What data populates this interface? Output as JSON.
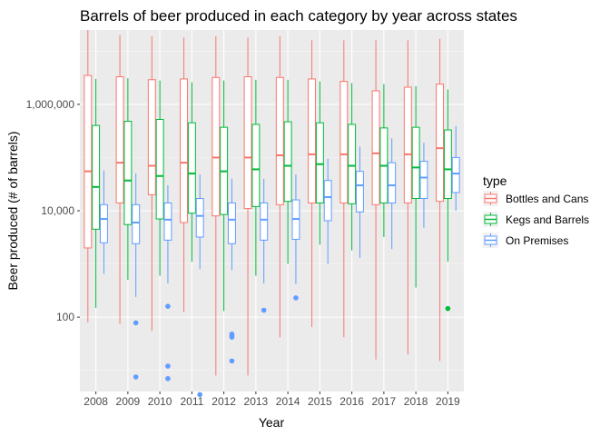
{
  "chart_data": {
    "type": "boxplot",
    "title": "Barrels of beer produced in each category by year across states",
    "xlabel": "Year",
    "ylabel": "Beer produced (# of barrels)",
    "y_scale": "log10",
    "ylim": [
      4,
      25000000
    ],
    "y_ticks": [
      {
        "value": 100,
        "label": "100"
      },
      {
        "value": 10000,
        "label": "10,000"
      },
      {
        "value": 1000000,
        "label": "1,000,000"
      }
    ],
    "legend": {
      "title": "type",
      "position": "right"
    },
    "categories": [
      "2008",
      "2009",
      "2010",
      "2011",
      "2012",
      "2013",
      "2014",
      "2015",
      "2016",
      "2017",
      "2018",
      "2019"
    ],
    "background": "#ebebeb",
    "grid": true,
    "series": [
      {
        "name": "Bottles and Cans",
        "color": "#f8766d",
        "boxes": [
          {
            "lower": 80,
            "q1": 2000,
            "median": 55000,
            "q3": 3500000,
            "upper": 25000000,
            "outliers": []
          },
          {
            "lower": 75,
            "q1": 14000,
            "median": 80000,
            "q3": 3300000,
            "upper": 20000000,
            "outliers": []
          },
          {
            "lower": 55,
            "q1": 20000,
            "median": 70000,
            "q3": 2900000,
            "upper": 19000000,
            "outliers": []
          },
          {
            "lower": 125,
            "q1": 6000,
            "median": 80000,
            "q3": 3000000,
            "upper": 18000000,
            "outliers": []
          },
          {
            "lower": 8,
            "q1": 8000,
            "median": 100000,
            "q3": 3200000,
            "upper": 19000000,
            "outliers": []
          },
          {
            "lower": 8,
            "q1": 11000,
            "median": 100000,
            "q3": 3300000,
            "upper": 18000000,
            "outliers": []
          },
          {
            "lower": 42,
            "q1": 13000,
            "median": 110000,
            "q3": 3200000,
            "upper": 19000000,
            "outliers": []
          },
          {
            "lower": 65,
            "q1": 14000,
            "median": 115000,
            "q3": 3000000,
            "upper": 16000000,
            "outliers": []
          },
          {
            "lower": 42,
            "q1": 14000,
            "median": 115000,
            "q3": 2700000,
            "upper": 16000000,
            "outliers": []
          },
          {
            "lower": 16,
            "q1": 13000,
            "median": 120000,
            "q3": 1800000,
            "upper": 16000000,
            "outliers": []
          },
          {
            "lower": 20,
            "q1": 14000,
            "median": 115000,
            "q3": 2100000,
            "upper": 16000000,
            "outliers": []
          },
          {
            "lower": 15,
            "q1": 15000,
            "median": 150000,
            "q3": 2400000,
            "upper": 17000000,
            "outliers": []
          }
        ]
      },
      {
        "name": "Kegs and Barrels",
        "color": "#00ba38",
        "boxes": [
          {
            "lower": 150,
            "q1": 4500,
            "median": 28000,
            "q3": 400000,
            "upper": 3000000,
            "outliers": []
          },
          {
            "lower": 500,
            "q1": 5500,
            "median": 37000,
            "q3": 480000,
            "upper": 3100000,
            "outliers": []
          },
          {
            "lower": 600,
            "q1": 7000,
            "median": 45000,
            "q3": 520000,
            "upper": 2800000,
            "outliers": []
          },
          {
            "lower": 1100,
            "q1": 9000,
            "median": 50000,
            "q3": 450000,
            "upper": 2600000,
            "outliers": []
          },
          {
            "lower": 130,
            "q1": 8500,
            "median": 55000,
            "q3": 370000,
            "upper": 2800000,
            "outliers": []
          },
          {
            "lower": 600,
            "q1": 12000,
            "median": 60000,
            "q3": 420000,
            "upper": 2900000,
            "outliers": []
          },
          {
            "lower": 1000,
            "q1": 15000,
            "median": 70000,
            "q3": 470000,
            "upper": 2900000,
            "outliers": []
          },
          {
            "lower": 2300,
            "q1": 14000,
            "median": 75000,
            "q3": 450000,
            "upper": 2700000,
            "outliers": []
          },
          {
            "lower": 1800,
            "q1": 13500,
            "median": 70000,
            "q3": 420000,
            "upper": 2500000,
            "outliers": []
          },
          {
            "lower": 3200,
            "q1": 14000,
            "median": 70000,
            "q3": 360000,
            "upper": 2400000,
            "outliers": []
          },
          {
            "lower": 360,
            "q1": 17000,
            "median": 65000,
            "q3": 370000,
            "upper": 2200000,
            "outliers": []
          },
          {
            "lower": 1100,
            "q1": 17000,
            "median": 60000,
            "q3": 330000,
            "upper": 1900000,
            "outliers": [
              145
            ]
          }
        ]
      },
      {
        "name": "On Premises",
        "color": "#619cff",
        "boxes": [
          {
            "lower": 650,
            "q1": 2500,
            "median": 7000,
            "q3": 13000,
            "upper": 57000,
            "outliers": []
          },
          {
            "lower": 240,
            "q1": 2400,
            "median": 6000,
            "q3": 13000,
            "upper": 50000,
            "outliers": [
              7.5,
              78
            ]
          },
          {
            "lower": 430,
            "q1": 2800,
            "median": 6800,
            "q3": 14000,
            "upper": 30000,
            "outliers": [
              7,
              12,
              160
            ]
          },
          {
            "lower": 800,
            "q1": 3200,
            "median": 8000,
            "q3": 17000,
            "upper": 48000,
            "outliers": [
              3.5
            ]
          },
          {
            "lower": 760,
            "q1": 2400,
            "median": 6800,
            "q3": 14000,
            "upper": 40000,
            "outliers": [
              15,
              42,
              45,
              48
            ]
          },
          {
            "lower": 430,
            "q1": 2800,
            "median": 6800,
            "q3": 14000,
            "upper": 40000,
            "outliers": [
              135
            ]
          },
          {
            "lower": 420,
            "q1": 2900,
            "median": 7000,
            "q3": 16000,
            "upper": 48000,
            "outliers": [
              230
            ]
          },
          {
            "lower": 1000,
            "q1": 6500,
            "median": 18000,
            "q3": 37000,
            "upper": 95000,
            "outliers": []
          },
          {
            "lower": 1300,
            "q1": 9500,
            "median": 30000,
            "q3": 55000,
            "upper": 160000,
            "outliers": []
          },
          {
            "lower": 1900,
            "q1": 14000,
            "median": 30000,
            "q3": 80000,
            "upper": 230000,
            "outliers": []
          },
          {
            "lower": 4800,
            "q1": 17000,
            "median": 42000,
            "q3": 85000,
            "upper": 190000,
            "outliers": []
          },
          {
            "lower": 10000,
            "q1": 22000,
            "median": 50000,
            "q3": 100000,
            "upper": 390000,
            "outliers": []
          }
        ]
      }
    ]
  }
}
